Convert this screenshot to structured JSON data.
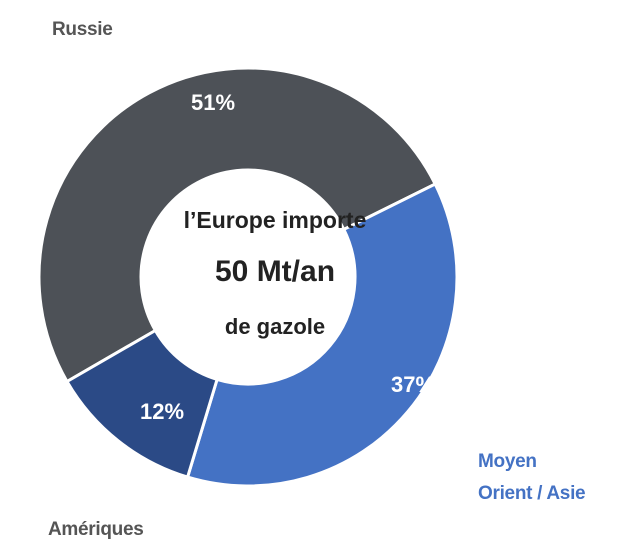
{
  "chart_data": {
    "type": "donut",
    "categories": [
      "Russie",
      "Moyen\nOrient / Asie",
      "Amériques"
    ],
    "values": [
      51,
      37,
      12
    ],
    "value_labels": [
      "51%",
      "37%",
      "12%"
    ],
    "colors": [
      "#4d5157",
      "#4472c4",
      "#2b4a86"
    ],
    "center_text": [
      "l’Europe importe",
      "50 Mt/an",
      "de gazole"
    ]
  }
}
